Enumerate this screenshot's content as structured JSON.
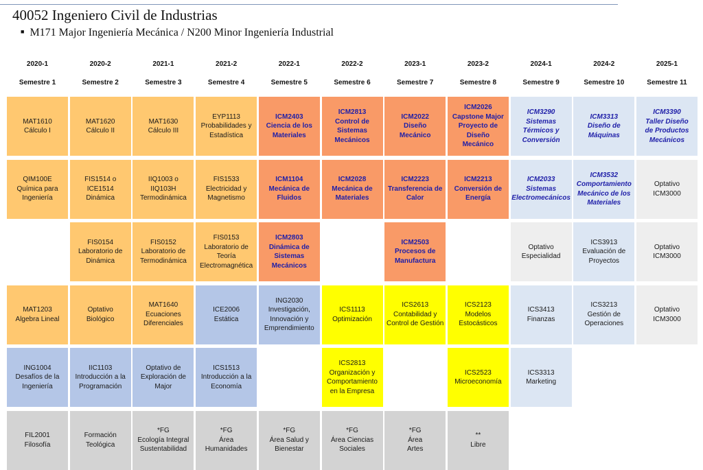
{
  "title": "40052 Ingeniero Civil de Industrias",
  "subtitle": "M171 Major Ingeniería Mecánica / N200 Minor Ingeniería Industrial",
  "colors": {
    "orange": "#ffc870",
    "red": "#f99a67",
    "blue": "#b4c6e7",
    "yellow": "#ffff00",
    "lightblue": "#dce6f3",
    "gray": "#d3d3d3",
    "ltgray": "#eeeeee",
    "major_text": "#1f1fa8"
  },
  "columns": [
    {
      "year": "2020-1",
      "semester": "Semestre 1"
    },
    {
      "year": "2020-2",
      "semester": "Semestre 2"
    },
    {
      "year": "2021-1",
      "semester": "Semestre 3"
    },
    {
      "year": "2021-2",
      "semester": "Semestre 4"
    },
    {
      "year": "2022-1",
      "semester": "Semestre 5"
    },
    {
      "year": "2022-2",
      "semester": "Semestre 6"
    },
    {
      "year": "2023-1",
      "semester": "Semestre 7"
    },
    {
      "year": "2023-2",
      "semester": "Semestre 8"
    },
    {
      "year": "2024-1",
      "semester": "Semestre 9"
    },
    {
      "year": "2024-2",
      "semester": "Semestre 10"
    },
    {
      "year": "2025-1",
      "semester": "Semestre 11"
    }
  ],
  "courses": [
    {
      "col": 0,
      "row": 0,
      "style": "orange",
      "text": "MAT1610\nCálculo I"
    },
    {
      "col": 0,
      "row": 1,
      "style": "orange",
      "text": "QIM100E\nQuímica para\nIngeniería"
    },
    {
      "col": 0,
      "row": 3,
      "style": "orange",
      "text": "MAT1203\nAlgebra Lineal"
    },
    {
      "col": 0,
      "row": 4,
      "style": "blue",
      "text": "ING1004\nDesafíos de la\nIngeniería"
    },
    {
      "col": 0,
      "row": 5,
      "style": "gray",
      "text": "FIL2001\nFilosofía"
    },
    {
      "col": 1,
      "row": 0,
      "style": "orange",
      "text": "MAT1620\nCálculo II"
    },
    {
      "col": 1,
      "row": 1,
      "style": "orange",
      "text": "FIS1514 o\nICE1514\nDinámica"
    },
    {
      "col": 1,
      "row": 2,
      "style": "orange",
      "text": "FIS0154\nLaboratorio de\nDinámica"
    },
    {
      "col": 1,
      "row": 3,
      "style": "orange",
      "text": "Optativo\nBiológico"
    },
    {
      "col": 1,
      "row": 4,
      "style": "blue",
      "text": "IIC1103\nIntroducción a la\nProgramación"
    },
    {
      "col": 1,
      "row": 5,
      "style": "gray",
      "text": "Formación\nTeológica"
    },
    {
      "col": 2,
      "row": 0,
      "style": "orange",
      "text": "MAT1630\nCálculo III"
    },
    {
      "col": 2,
      "row": 1,
      "style": "orange",
      "text": "IIQ1003 o\nIIQ103H\nTermodinámica"
    },
    {
      "col": 2,
      "row": 2,
      "style": "orange",
      "text": "FIS0152\nLaboratorio de\nTermodinámica"
    },
    {
      "col": 2,
      "row": 3,
      "style": "orange",
      "text": "MAT1640\nEcuaciones\nDiferenciales"
    },
    {
      "col": 2,
      "row": 4,
      "style": "blue",
      "text": "Optativo de\nExploración de\nMajor"
    },
    {
      "col": 2,
      "row": 5,
      "style": "gray",
      "text": "*FG\nEcología Integral\nSustentabilidad"
    },
    {
      "col": 3,
      "row": 0,
      "style": "orange",
      "text": "EYP1113\nProbabilidades y\nEstadística"
    },
    {
      "col": 3,
      "row": 1,
      "style": "orange",
      "text": "FIS1533\nElectricidad y\nMagnetismo"
    },
    {
      "col": 3,
      "row": 2,
      "style": "orange",
      "text": "FIS0153\nLaboratorio de\nTeoría\nElectromagnética"
    },
    {
      "col": 3,
      "row": 3,
      "style": "blue",
      "text": "ICE2006\nEstática"
    },
    {
      "col": 3,
      "row": 4,
      "style": "blue",
      "text": "ICS1513\nIntroducción a la\nEconomía"
    },
    {
      "col": 3,
      "row": 5,
      "style": "gray",
      "text": "*FG\nÁrea\nHumanidades"
    },
    {
      "col": 4,
      "row": 0,
      "style": "red",
      "text": "ICM2403\nCiencia de los\nMateriales"
    },
    {
      "col": 4,
      "row": 1,
      "style": "red",
      "text": "ICM1104\nMecánica de\nFluidos"
    },
    {
      "col": 4,
      "row": 2,
      "style": "red",
      "text": "ICM2803\nDinámica de\nSistemas\nMecánicos"
    },
    {
      "col": 4,
      "row": 3,
      "style": "blue",
      "text": "ING2030\nInvestigación,\nInnovación y\nEmprendimiento"
    },
    {
      "col": 4,
      "row": 5,
      "style": "gray",
      "text": "*FG\nÁrea Salud y\nBienestar"
    },
    {
      "col": 5,
      "row": 0,
      "style": "red",
      "text": "ICM2813\nControl de\nSistemas\nMecánicos"
    },
    {
      "col": 5,
      "row": 1,
      "style": "red",
      "text": "ICM2028\nMecánica de\nMateriales"
    },
    {
      "col": 5,
      "row": 3,
      "style": "yellow",
      "text": "ICS1113\nOptimización"
    },
    {
      "col": 5,
      "row": 4,
      "style": "yellow",
      "text": "ICS2813\nOrganización y\nComportamiento\nen la Empresa"
    },
    {
      "col": 5,
      "row": 5,
      "style": "gray",
      "text": "*FG\nÁrea Ciencias\nSociales"
    },
    {
      "col": 6,
      "row": 0,
      "style": "red",
      "text": "ICM2022\nDiseño\nMecánico"
    },
    {
      "col": 6,
      "row": 1,
      "style": "red",
      "text": "ICM2223\nTransferencia de\nCalor"
    },
    {
      "col": 6,
      "row": 2,
      "style": "red",
      "text": "ICM2503\nProcesos de\nManufactura"
    },
    {
      "col": 6,
      "row": 3,
      "style": "yellow",
      "text": "ICS2613\nContabilidad y\nControl de Gestión"
    },
    {
      "col": 6,
      "row": 5,
      "style": "gray",
      "text": "*FG\nÁrea\nArtes"
    },
    {
      "col": 7,
      "row": 0,
      "style": "red",
      "text": "ICM2026\nCapstone Major\nProyecto de Diseño\nMecánico"
    },
    {
      "col": 7,
      "row": 1,
      "style": "red",
      "text": "ICM2213\nConversión de\nEnergía"
    },
    {
      "col": 7,
      "row": 3,
      "style": "yellow",
      "text": "ICS2123\nModelos\nEstocásticos"
    },
    {
      "col": 7,
      "row": 4,
      "style": "yellow",
      "text": "ICS2523\nMicroeconomía"
    },
    {
      "col": 7,
      "row": 5,
      "style": "gray",
      "text": "**\nLibre"
    },
    {
      "col": 8,
      "row": 0,
      "style": "lightblue",
      "text": "ICM3290\nSistemas\nTérmicos y\nConversión"
    },
    {
      "col": 8,
      "row": 1,
      "style": "lightblue",
      "text": "ICM2033\nSistemas\nElectromecánicos"
    },
    {
      "col": 8,
      "row": 2,
      "style": "ltgray",
      "text": "Optativo\nEspecialidad"
    },
    {
      "col": 8,
      "row": 3,
      "style": "lightblue-plain",
      "text": "ICS3413\nFinanzas"
    },
    {
      "col": 8,
      "row": 4,
      "style": "lightblue-plain",
      "text": "ICS3313\nMarketing"
    },
    {
      "col": 9,
      "row": 0,
      "style": "lightblue",
      "text": "ICM3313\nDiseño de\nMáquinas"
    },
    {
      "col": 9,
      "row": 1,
      "style": "lightblue",
      "text": "ICM3532\nComportamiento\nMecánico de los\nMateriales"
    },
    {
      "col": 9,
      "row": 2,
      "style": "lightblue-plain",
      "text": "ICS3913\nEvaluación de\nProyectos"
    },
    {
      "col": 9,
      "row": 3,
      "style": "lightblue-plain",
      "text": "ICS3213\nGestión de\nOperaciones"
    },
    {
      "col": 10,
      "row": 0,
      "style": "lightblue",
      "text": "ICM3390\nTaller Diseño\nde Productos\nMecánicos"
    },
    {
      "col": 10,
      "row": 1,
      "style": "ltgray",
      "text": "Optativo\nICM3000"
    },
    {
      "col": 10,
      "row": 2,
      "style": "ltgray",
      "text": "Optativo\nICM3000"
    },
    {
      "col": 10,
      "row": 3,
      "style": "ltgray",
      "text": "Optativo\nICM3000"
    }
  ]
}
